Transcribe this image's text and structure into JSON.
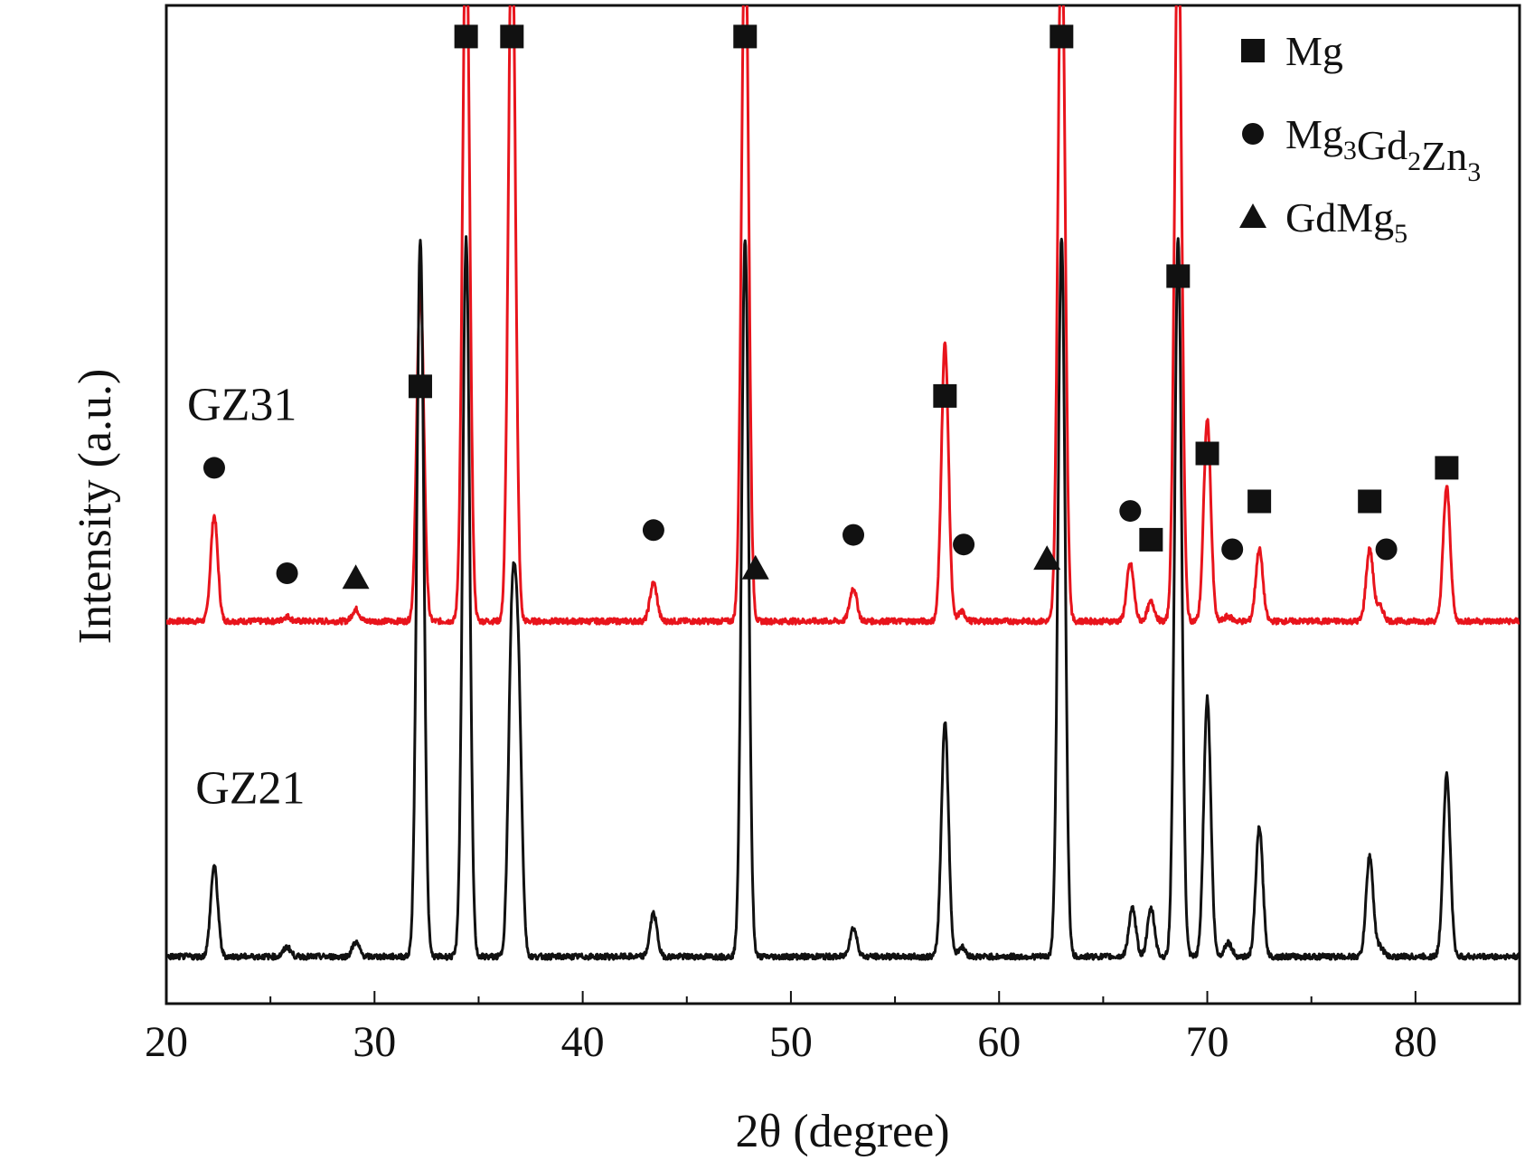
{
  "chart_data": {
    "type": "line",
    "title": "",
    "xlabel": "2θ (degree)",
    "ylabel": "Intensity (a.u.)",
    "xlim": [
      20,
      85
    ],
    "x_ticks": [
      20,
      30,
      40,
      50,
      60,
      70,
      80
    ],
    "y_ticks_shown": false,
    "grid": false,
    "colors": {
      "GZ31": "#e8141c",
      "GZ21": "#111111"
    },
    "series": [
      {
        "name": "GZ31",
        "curve_label": "GZ31",
        "baseline": 0.7,
        "peaks": [
          [
            22.3,
            0.22
          ],
          [
            25.8,
            0.01
          ],
          [
            29.1,
            0.025
          ],
          [
            32.2,
            0.7
          ],
          [
            34.4,
            1.5
          ],
          [
            36.6,
            1.5
          ],
          [
            43.4,
            0.08
          ],
          [
            47.8,
            1.5
          ],
          [
            53.0,
            0.07
          ],
          [
            57.4,
            0.58
          ],
          [
            58.2,
            0.02
          ],
          [
            63.0,
            1.5
          ],
          [
            66.3,
            0.12
          ],
          [
            67.3,
            0.04
          ],
          [
            68.6,
            1.5
          ],
          [
            70.0,
            0.42
          ],
          [
            71.0,
            0.01
          ],
          [
            72.5,
            0.15
          ],
          [
            77.8,
            0.15
          ],
          [
            78.3,
            0.03
          ],
          [
            81.5,
            0.28
          ]
        ]
      },
      {
        "name": "GZ21",
        "curve_label": "GZ21",
        "baseline": 0.0,
        "peaks": [
          [
            22.3,
            0.19
          ],
          [
            25.8,
            0.02
          ],
          [
            29.1,
            0.03
          ],
          [
            32.2,
            1.5
          ],
          [
            34.4,
            1.5
          ],
          [
            36.6,
            0.65
          ],
          [
            36.9,
            0.55
          ],
          [
            43.4,
            0.09
          ],
          [
            47.8,
            1.5
          ],
          [
            53.0,
            0.06
          ],
          [
            57.4,
            0.49
          ],
          [
            58.2,
            0.02
          ],
          [
            63.0,
            1.5
          ],
          [
            66.4,
            0.1
          ],
          [
            67.3,
            0.1
          ],
          [
            68.6,
            1.5
          ],
          [
            70.0,
            0.54
          ],
          [
            71.0,
            0.03
          ],
          [
            72.5,
            0.27
          ],
          [
            77.8,
            0.21
          ],
          [
            78.3,
            0.02
          ],
          [
            81.5,
            0.38
          ]
        ]
      }
    ],
    "phase_markers": [
      {
        "phase": "Mg",
        "shape": "square",
        "x": 32.2,
        "y": 1.19
      },
      {
        "phase": "Mg",
        "shape": "square",
        "x": 34.4,
        "y": 1.92
      },
      {
        "phase": "Mg",
        "shape": "square",
        "x": 36.6,
        "y": 1.92
      },
      {
        "phase": "Mg",
        "shape": "square",
        "x": 47.8,
        "y": 1.92
      },
      {
        "phase": "Mg",
        "shape": "square",
        "x": 57.4,
        "y": 1.17
      },
      {
        "phase": "Mg",
        "shape": "square",
        "x": 63.0,
        "y": 1.92
      },
      {
        "phase": "Mg",
        "shape": "square",
        "x": 67.3,
        "y": 0.87
      },
      {
        "phase": "Mg",
        "shape": "square",
        "x": 68.6,
        "y": 1.42
      },
      {
        "phase": "Mg",
        "shape": "square",
        "x": 70.0,
        "y": 1.05
      },
      {
        "phase": "Mg",
        "shape": "square",
        "x": 72.5,
        "y": 0.95
      },
      {
        "phase": "Mg",
        "shape": "square",
        "x": 77.8,
        "y": 0.95
      },
      {
        "phase": "Mg",
        "shape": "square",
        "x": 81.5,
        "y": 1.02
      },
      {
        "phase": "Mg3Gd2Zn3",
        "shape": "circle",
        "x": 22.3,
        "y": 1.02
      },
      {
        "phase": "Mg3Gd2Zn3",
        "shape": "circle",
        "x": 25.8,
        "y": 0.8
      },
      {
        "phase": "Mg3Gd2Zn3",
        "shape": "circle",
        "x": 43.4,
        "y": 0.89
      },
      {
        "phase": "Mg3Gd2Zn3",
        "shape": "circle",
        "x": 53.0,
        "y": 0.88
      },
      {
        "phase": "Mg3Gd2Zn3",
        "shape": "circle",
        "x": 58.3,
        "y": 0.86
      },
      {
        "phase": "Mg3Gd2Zn3",
        "shape": "circle",
        "x": 66.3,
        "y": 0.93
      },
      {
        "phase": "Mg3Gd2Zn3",
        "shape": "circle",
        "x": 71.2,
        "y": 0.85
      },
      {
        "phase": "Mg3Gd2Zn3",
        "shape": "circle",
        "x": 78.6,
        "y": 0.85
      },
      {
        "phase": "GdMg5",
        "shape": "triangle",
        "x": 29.1,
        "y": 0.79
      },
      {
        "phase": "GdMg5",
        "shape": "triangle",
        "x": 48.3,
        "y": 0.81
      },
      {
        "phase": "GdMg5",
        "shape": "triangle",
        "x": 62.3,
        "y": 0.83
      }
    ],
    "legend": {
      "placement": "top-right",
      "entries": [
        {
          "shape": "square",
          "label": "Mg",
          "base": "Mg"
        },
        {
          "shape": "circle",
          "label": "Mg3Gd2Zn3",
          "base": "Mg",
          "sub1": "3",
          "mid1": "Gd",
          "sub2": "2",
          "mid2": "Zn",
          "sub3": "3"
        },
        {
          "shape": "triangle",
          "label": "GdMg5",
          "base": "GdMg",
          "sub1": "5"
        }
      ]
    }
  }
}
